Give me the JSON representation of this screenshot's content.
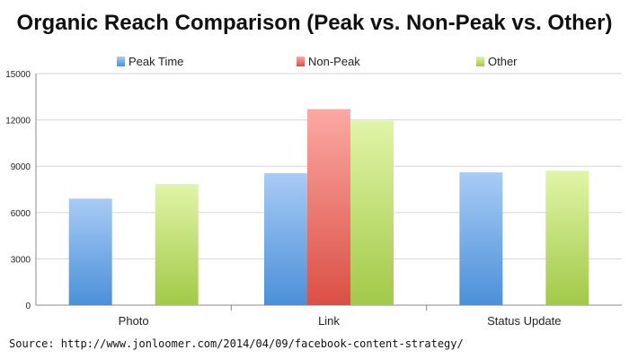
{
  "chart_data": {
    "type": "bar",
    "title": "Organic Reach Comparison (Peak vs. Non-Peak vs. Other)",
    "xlabel": "",
    "ylabel": "",
    "categories": [
      "Photo",
      "Link",
      "Status Update"
    ],
    "series": [
      {
        "name": "Peak Time",
        "values": [
          6900,
          8550,
          8600
        ],
        "color": "#4a90d9",
        "color_light": "#a9cbf5"
      },
      {
        "name": "Non-Peak",
        "values": [
          null,
          12700,
          null
        ],
        "color": "#db4f44",
        "color_light": "#fba9a3"
      },
      {
        "name": "Other",
        "values": [
          7850,
          11950,
          8700
        ],
        "color": "#a2c948",
        "color_light": "#e0f5a7"
      }
    ],
    "ylim": [
      0,
      15000
    ],
    "yticks": [
      0,
      3000,
      6000,
      9000,
      12000,
      15000
    ],
    "grid": true,
    "legend": "top"
  },
  "source": "Source: http://www.jonloomer.com/2014/04/09/facebook-content-strategy/"
}
